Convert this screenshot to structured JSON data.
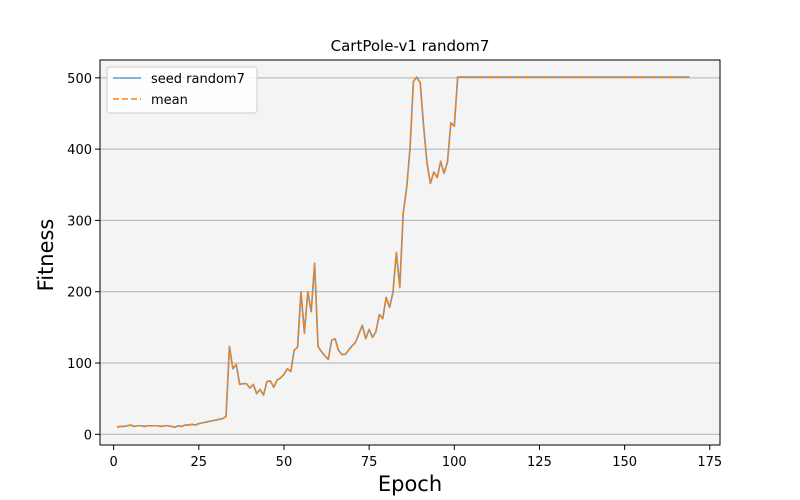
{
  "chart_data": {
    "type": "line",
    "title": "CartPole-v1 random7",
    "xlabel": "Epoch",
    "ylabel": "Fitness",
    "xlim": [
      -4,
      178
    ],
    "ylim": [
      -15,
      525
    ],
    "xticks": [
      0,
      25,
      50,
      75,
      100,
      125,
      150,
      175
    ],
    "yticks": [
      0,
      100,
      200,
      300,
      400,
      500
    ],
    "grid": "y",
    "legend_position": "top-left",
    "colors": {
      "seed": "#5b9bd0",
      "mean": "#ff7f0e",
      "plot_bg": "#f4f4f4",
      "grid": "#b0b0b0"
    },
    "x_start": 1,
    "series": [
      {
        "name": "seed random7",
        "style": "solid",
        "values": [
          10,
          11,
          11,
          12,
          13,
          11,
          12,
          12,
          11,
          12,
          12,
          12,
          12,
          11,
          12,
          12,
          11,
          10,
          12,
          11,
          13,
          13,
          14,
          13,
          15,
          16,
          17,
          18,
          19,
          20,
          21,
          22,
          25,
          123,
          92,
          98,
          70,
          71,
          71,
          65,
          70,
          57,
          63,
          55,
          74,
          75,
          66,
          76,
          79,
          84,
          92,
          88,
          118,
          122,
          200,
          142,
          200,
          172,
          240,
          123,
          116,
          110,
          105,
          132,
          134,
          118,
          112,
          112,
          118,
          124,
          129,
          141,
          153,
          134,
          147,
          136,
          144,
          168,
          162,
          192,
          178,
          199,
          255,
          206,
          310,
          345,
          400,
          495,
          501,
          493,
          432,
          380,
          352,
          368,
          360,
          383,
          366,
          382,
          437,
          432,
          501,
          501,
          501,
          501,
          501,
          501,
          501,
          501,
          501,
          501,
          501,
          501,
          501,
          501,
          501,
          501,
          501,
          501,
          501,
          501,
          501,
          501,
          501,
          501,
          501,
          501,
          501,
          501,
          501,
          501,
          501,
          501,
          501,
          501,
          501,
          501,
          501,
          501,
          501,
          501,
          501,
          501,
          501,
          501,
          501,
          501,
          501,
          501,
          501,
          501,
          501,
          501,
          501,
          501,
          501,
          501,
          501,
          501,
          501,
          501,
          501,
          501,
          501,
          501,
          501,
          501,
          501,
          501,
          501
        ]
      },
      {
        "name": "mean",
        "style": "dashed",
        "values": [
          10,
          11,
          11,
          12,
          13,
          11,
          12,
          12,
          11,
          12,
          12,
          12,
          12,
          11,
          12,
          12,
          11,
          10,
          12,
          11,
          13,
          13,
          14,
          13,
          15,
          16,
          17,
          18,
          19,
          20,
          21,
          22,
          25,
          123,
          92,
          98,
          70,
          71,
          71,
          65,
          70,
          57,
          63,
          55,
          74,
          75,
          66,
          76,
          79,
          84,
          92,
          88,
          118,
          122,
          200,
          142,
          200,
          172,
          240,
          123,
          116,
          110,
          105,
          132,
          134,
          118,
          112,
          112,
          118,
          124,
          129,
          141,
          153,
          134,
          147,
          136,
          144,
          168,
          162,
          192,
          178,
          199,
          255,
          206,
          310,
          345,
          400,
          495,
          501,
          493,
          432,
          380,
          352,
          368,
          360,
          383,
          366,
          382,
          437,
          432,
          501,
          501,
          501,
          501,
          501,
          501,
          501,
          501,
          501,
          501,
          501,
          501,
          501,
          501,
          501,
          501,
          501,
          501,
          501,
          501,
          501,
          501,
          501,
          501,
          501,
          501,
          501,
          501,
          501,
          501,
          501,
          501,
          501,
          501,
          501,
          501,
          501,
          501,
          501,
          501,
          501,
          501,
          501,
          501,
          501,
          501,
          501,
          501,
          501,
          501,
          501,
          501,
          501,
          501,
          501,
          501,
          501,
          501,
          501,
          501,
          501,
          501,
          501,
          501,
          501,
          501,
          501,
          501,
          501
        ]
      }
    ]
  }
}
